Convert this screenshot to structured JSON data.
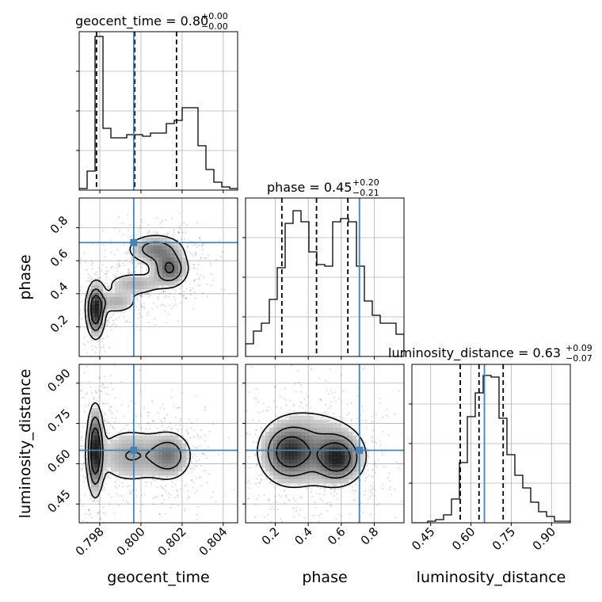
{
  "figure_type": "corner-plot",
  "truth_color": "#4682b4",
  "chart_data": {
    "type": "corner",
    "parameters": [
      "geocent_time",
      "phase",
      "luminosity_distance"
    ],
    "axis_labels": {
      "geocent_time": "geocent_time",
      "phase": "phase",
      "luminosity_distance": "luminosity_distance"
    },
    "ranges": {
      "geocent_time": [
        0.797,
        0.8047
      ],
      "phase": [
        0.02,
        0.98
      ],
      "luminosity_distance": [
        0.38,
        0.97
      ]
    },
    "truths": {
      "geocent_time": 0.79965,
      "phase": 0.71,
      "luminosity_distance": 0.65
    },
    "titles": {
      "geocent_time": {
        "label": "geocent_time = 0.80",
        "plus": "+0.00",
        "minus": "−0.00"
      },
      "phase": {
        "label": "phase = 0.45",
        "plus": "+0.20",
        "minus": "−0.21"
      },
      "luminosity_distance": {
        "label": "luminosity_distance = 0.63",
        "plus": "+0.09",
        "minus": "−0.07"
      }
    },
    "quantiles": {
      "geocent_time": [
        0.79784,
        0.7997,
        0.80173
      ],
      "phase": [
        0.24,
        0.45,
        0.64
      ],
      "luminosity_distance": [
        0.56,
        0.63,
        0.72
      ]
    },
    "ticks": {
      "geocent_time": {
        "values": [
          0.798,
          0.8,
          0.802,
          0.804
        ],
        "labels": [
          "0.798",
          "0.800",
          "0.802",
          "0.804"
        ]
      },
      "phase": {
        "values": [
          0.2,
          0.4,
          0.6,
          0.8
        ],
        "labels": [
          "0.2",
          "0.4",
          "0.6",
          "0.8"
        ]
      },
      "luminosity_distance": {
        "values": [
          0.45,
          0.6,
          0.75,
          0.9
        ],
        "labels": [
          "0.45",
          "0.60",
          "0.75",
          "0.90"
        ]
      }
    },
    "histograms": {
      "geocent_time": [
        0.01,
        0.12,
        0.97,
        0.39,
        0.33,
        0.33,
        0.35,
        0.35,
        0.34,
        0.36,
        0.36,
        0.42,
        0.44,
        0.52,
        0.52,
        0.28,
        0.13,
        0.05,
        0.02,
        0.01
      ],
      "phase": [
        0.08,
        0.16,
        0.21,
        0.36,
        0.56,
        0.84,
        0.92,
        0.85,
        0.66,
        0.58,
        0.57,
        0.85,
        0.87,
        0.85,
        0.57,
        0.35,
        0.26,
        0.21,
        0.21,
        0.14
      ],
      "luminosity_distance": [
        0.0,
        0.0,
        0.01,
        0.02,
        0.05,
        0.15,
        0.38,
        0.67,
        0.82,
        0.93,
        0.92,
        0.66,
        0.43,
        0.3,
        0.22,
        0.13,
        0.07,
        0.04,
        0.01,
        0.01
      ]
    },
    "density_blobs": {
      "phase_vs_geocent_time": [
        {
          "x": 0.7978,
          "y": 0.3,
          "amp": 1.0,
          "sx": 0.00025,
          "sy": 0.09
        },
        {
          "x": 0.8007,
          "y": 0.67,
          "amp": 0.55,
          "sx": 0.00075,
          "sy": 0.05
        },
        {
          "x": 0.8014,
          "y": 0.55,
          "amp": 0.7,
          "sx": 0.0005,
          "sy": 0.06
        },
        {
          "x": 0.7988,
          "y": 0.35,
          "amp": 0.35,
          "sx": 0.0006,
          "sy": 0.04
        },
        {
          "x": 0.7997,
          "y": 0.46,
          "amp": 0.35,
          "sx": 0.0008,
          "sy": 0.04
        }
      ],
      "luminosity_distance_vs_geocent_time": [
        {
          "x": 0.79778,
          "y": 0.65,
          "amp": 1.0,
          "sx": 0.00022,
          "sy": 0.09
        },
        {
          "x": 0.8014,
          "y": 0.63,
          "amp": 0.55,
          "sx": 0.0006,
          "sy": 0.05
        },
        {
          "x": 0.7995,
          "y": 0.63,
          "amp": 0.4,
          "sx": 0.001,
          "sy": 0.06
        }
      ],
      "luminosity_distance_vs_phase": [
        {
          "x": 0.58,
          "y": 0.62,
          "amp": 1.0,
          "sx": 0.08,
          "sy": 0.05
        },
        {
          "x": 0.28,
          "y": 0.64,
          "amp": 0.85,
          "sx": 0.09,
          "sy": 0.06
        },
        {
          "x": 0.42,
          "y": 0.66,
          "amp": 0.45,
          "sx": 0.18,
          "sy": 0.09
        }
      ]
    },
    "grid": true
  }
}
